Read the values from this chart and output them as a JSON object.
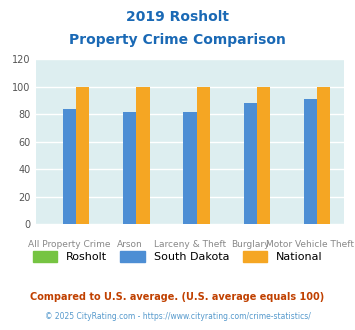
{
  "title_line1": "2019 Rosholt",
  "title_line2": "Property Crime Comparison",
  "title_color": "#1a69b5",
  "top_labels": [
    "",
    "Arson",
    "",
    "Burglary",
    ""
  ],
  "bottom_labels": [
    "All Property Crime",
    "",
    "Larceny & Theft",
    "",
    "Motor Vehicle Theft"
  ],
  "rosholt": [
    0,
    0,
    0,
    0,
    0
  ],
  "south_dakota": [
    84,
    82,
    82,
    88,
    91
  ],
  "national": [
    100,
    100,
    100,
    100,
    100
  ],
  "rosholt_color": "#76c442",
  "sd_color": "#4d8ed4",
  "national_color": "#f5a623",
  "ylim": [
    0,
    120
  ],
  "yticks": [
    0,
    20,
    40,
    60,
    80,
    100,
    120
  ],
  "bg_color": "#ddeef0",
  "grid_color": "#ffffff",
  "footnote1": "Compared to U.S. average. (U.S. average equals 100)",
  "footnote2": "© 2025 CityRating.com - https://www.cityrating.com/crime-statistics/",
  "footnote1_color": "#c04000",
  "footnote2_color": "#5599cc"
}
